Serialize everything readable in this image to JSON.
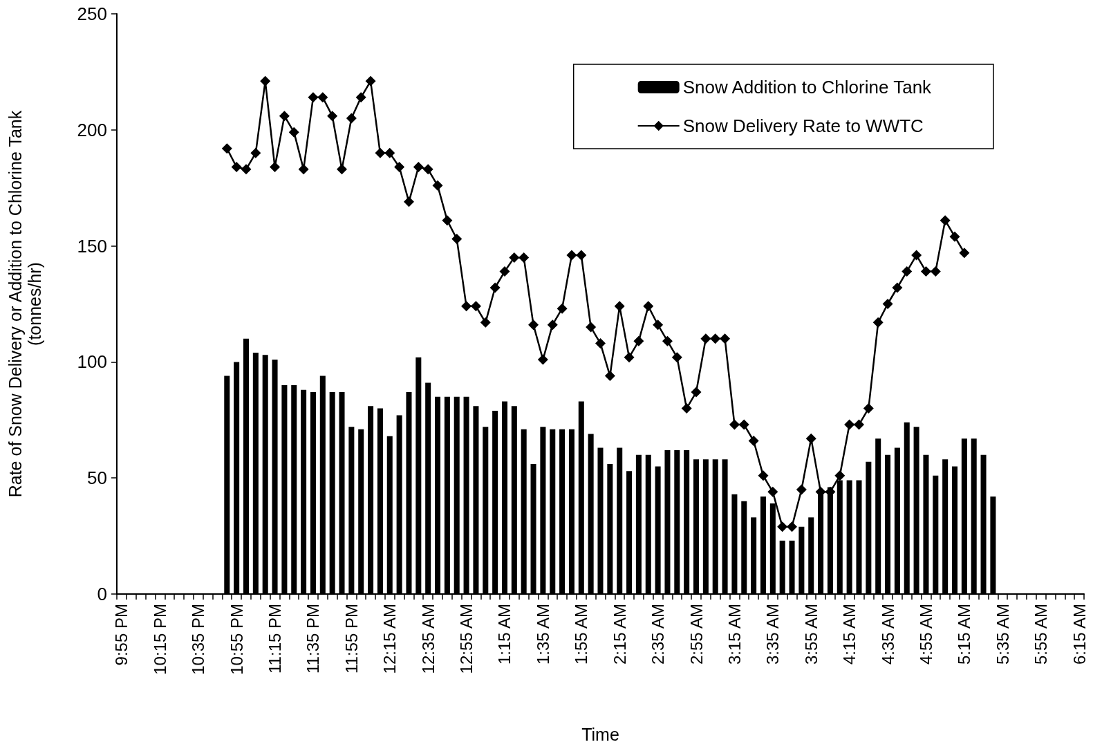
{
  "chart_data": {
    "type": "bar",
    "xlabel": "Time",
    "ylabel": "Rate of Snow Delivery or Addition to Chlorine Tank\n(tonnes/hr)",
    "categories": [
      "9:55 PM",
      null,
      null,
      null,
      "10:15 PM",
      null,
      null,
      null,
      "10:35 PM",
      null,
      null,
      null,
      "10:55 PM",
      null,
      null,
      null,
      "11:15 PM",
      null,
      null,
      null,
      "11:35 PM",
      null,
      null,
      null,
      "11:55 PM",
      null,
      null,
      null,
      "12:15 AM",
      null,
      null,
      null,
      "12:35 AM",
      null,
      null,
      null,
      "12:55 AM",
      null,
      null,
      null,
      "1:15 AM",
      null,
      null,
      null,
      "1:35 AM",
      null,
      null,
      null,
      "1:55 AM",
      null,
      null,
      null,
      "2:15 AM",
      null,
      null,
      null,
      "2:35 AM",
      null,
      null,
      null,
      "2:55 AM",
      null,
      null,
      null,
      "3:15 AM",
      null,
      null,
      null,
      "3:35 AM",
      null,
      null,
      null,
      "3:55 AM",
      null,
      null,
      null,
      "4:15 AM",
      null,
      null,
      null,
      "4:35 AM",
      null,
      null,
      null,
      "4:55 AM",
      null,
      null,
      null,
      "5:15 AM",
      null,
      null,
      null,
      "5:35 AM",
      null,
      null,
      null,
      "5:55 AM",
      null,
      null,
      null,
      "6:15 AM"
    ],
    "series": [
      {
        "name": "Snow Addition to Chlorine Tank",
        "color": "#000000",
        "values": [
          null,
          null,
          null,
          null,
          null,
          null,
          null,
          null,
          null,
          null,
          null,
          94,
          100,
          110,
          104,
          103,
          101,
          90,
          90,
          88,
          87,
          94,
          87,
          87,
          72,
          71,
          81,
          80,
          68,
          77,
          87,
          102,
          91,
          85,
          85,
          85,
          85,
          81,
          72,
          79,
          83,
          81,
          71,
          56,
          72,
          71,
          71,
          71,
          83,
          69,
          63,
          56,
          63,
          53,
          60,
          60,
          55,
          62,
          62,
          62,
          58,
          58,
          58,
          58,
          43,
          40,
          33,
          42,
          39,
          23,
          23,
          29,
          33,
          43,
          46,
          49,
          49,
          49,
          57,
          67,
          60,
          63,
          74,
          72,
          60,
          51,
          58,
          55,
          67,
          67,
          60,
          42,
          null,
          null,
          null,
          null,
          null,
          null,
          null,
          null,
          null
        ]
      },
      {
        "name": "Snow Delivery Rate to WWTC",
        "type": "line",
        "color": "#000000",
        "marker": "diamond",
        "line_style": "solid",
        "values": [
          null,
          null,
          null,
          null,
          null,
          null,
          null,
          null,
          null,
          null,
          null,
          192,
          184,
          183,
          190,
          221,
          184,
          206,
          199,
          183,
          214,
          214,
          206,
          183,
          205,
          214,
          221,
          190,
          190,
          184,
          169,
          184,
          183,
          176,
          161,
          153,
          124,
          124,
          117,
          132,
          139,
          145,
          145,
          116,
          101,
          116,
          123,
          146,
          146,
          115,
          108,
          94,
          124,
          102,
          109,
          124,
          116,
          109,
          102,
          80,
          87,
          110,
          110,
          110,
          73,
          73,
          66,
          51,
          44,
          29,
          29,
          45,
          67,
          44,
          44,
          51,
          73,
          73,
          80,
          117,
          125,
          132,
          139,
          146,
          139,
          139,
          161,
          154,
          147,
          null,
          null,
          null,
          null,
          null,
          null,
          null,
          null,
          null,
          null,
          null,
          null
        ]
      }
    ],
    "ylim": [
      0,
      250
    ],
    "yticks": [
      0,
      50,
      100,
      150,
      200,
      250
    ],
    "grid": false,
    "legend": "top right"
  }
}
